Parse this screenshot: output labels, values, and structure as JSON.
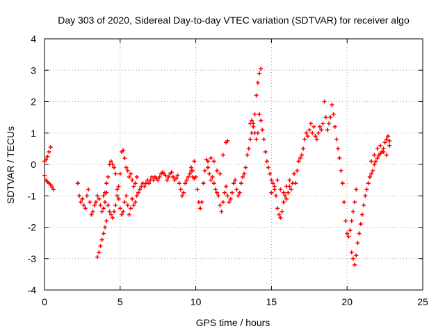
{
  "chart_data": {
    "type": "scatter",
    "title": "Day 303 of 2020, Sidereal Day-to-day VTEC variation (SDTVAR) for receiver algo",
    "xlabel": "GPS time / hours",
    "ylabel": "SDTVAR / TECUs",
    "xlim": [
      0,
      25
    ],
    "ylim": [
      -4,
      4
    ],
    "xticks": [
      0,
      5,
      10,
      15,
      20,
      25
    ],
    "yticks": [
      -4,
      -3,
      -2,
      -1,
      0,
      1,
      2,
      3,
      4
    ],
    "grid": true,
    "marker": "+",
    "color": "#ff0000",
    "series": [
      {
        "name": "SDTVAR",
        "points": [
          [
            0.0,
            0.1
          ],
          [
            0.1,
            0.15
          ],
          [
            0.2,
            0.25
          ],
          [
            0.3,
            0.4
          ],
          [
            0.4,
            0.55
          ],
          [
            0.0,
            -0.35
          ],
          [
            0.1,
            -0.5
          ],
          [
            0.2,
            -0.55
          ],
          [
            0.3,
            -0.6
          ],
          [
            0.4,
            -0.65
          ],
          [
            0.5,
            -0.72
          ],
          [
            0.6,
            -0.8
          ],
          [
            2.2,
            -0.6
          ],
          [
            2.3,
            -1.0
          ],
          [
            2.4,
            -1.2
          ],
          [
            2.5,
            -1.1
          ],
          [
            2.6,
            -1.3
          ],
          [
            2.7,
            -1.4
          ],
          [
            2.8,
            -1.0
          ],
          [
            2.9,
            -0.8
          ],
          [
            3.0,
            -1.2
          ],
          [
            3.1,
            -1.6
          ],
          [
            3.2,
            -1.5
          ],
          [
            3.3,
            -1.3
          ],
          [
            3.4,
            -1.2
          ],
          [
            3.5,
            -1.0
          ],
          [
            3.6,
            -1.1
          ],
          [
            3.7,
            -1.3
          ],
          [
            3.8,
            -1.5
          ],
          [
            3.9,
            -1.4
          ],
          [
            4.0,
            -1.2
          ],
          [
            4.1,
            -0.9
          ],
          [
            4.2,
            -1.3
          ],
          [
            4.3,
            -1.5
          ],
          [
            4.4,
            -1.6
          ],
          [
            4.5,
            -1.7
          ],
          [
            4.6,
            -1.5
          ],
          [
            4.7,
            -1.3
          ],
          [
            4.8,
            -1.0
          ],
          [
            4.9,
            -1.1
          ],
          [
            5.0,
            -1.4
          ],
          [
            5.1,
            -1.6
          ],
          [
            5.2,
            -1.5
          ],
          [
            5.3,
            -1.2
          ],
          [
            5.4,
            -1.0
          ],
          [
            5.5,
            -1.3
          ],
          [
            5.6,
            -1.6
          ],
          [
            5.7,
            -1.4
          ],
          [
            5.8,
            -1.1
          ],
          [
            5.9,
            -1.3
          ],
          [
            6.0,
            -1.2
          ],
          [
            6.1,
            -1.0
          ],
          [
            6.2,
            -0.9
          ],
          [
            6.3,
            -0.8
          ],
          [
            6.4,
            -0.7
          ],
          [
            6.5,
            -0.6
          ],
          [
            6.6,
            -0.7
          ],
          [
            6.7,
            -0.6
          ],
          [
            6.8,
            -0.5
          ],
          [
            6.9,
            -0.6
          ],
          [
            7.0,
            -0.5
          ],
          [
            7.1,
            -0.4
          ],
          [
            7.2,
            -0.5
          ],
          [
            7.3,
            -0.4
          ],
          [
            7.4,
            -0.45
          ],
          [
            7.5,
            -0.5
          ],
          [
            7.6,
            -0.4
          ],
          [
            7.7,
            -0.3
          ],
          [
            7.8,
            -0.25
          ],
          [
            7.9,
            -0.3
          ],
          [
            8.0,
            -0.35
          ],
          [
            8.1,
            -0.5
          ],
          [
            8.2,
            -0.4
          ],
          [
            8.3,
            -0.3
          ],
          [
            8.4,
            -0.25
          ],
          [
            8.5,
            -0.4
          ],
          [
            8.6,
            -0.5
          ],
          [
            8.7,
            -0.45
          ],
          [
            8.8,
            -0.35
          ],
          [
            8.9,
            -0.6
          ],
          [
            9.0,
            -0.8
          ],
          [
            9.1,
            -1.0
          ],
          [
            9.2,
            -0.9
          ],
          [
            9.3,
            -0.6
          ],
          [
            9.4,
            -0.5
          ],
          [
            9.5,
            -0.4
          ],
          [
            9.6,
            -0.3
          ],
          [
            9.7,
            -0.2
          ],
          [
            9.8,
            -0.4
          ],
          [
            9.9,
            -0.45
          ],
          [
            3.5,
            -2.95
          ],
          [
            3.6,
            -2.8
          ],
          [
            3.7,
            -2.6
          ],
          [
            3.8,
            -2.4
          ],
          [
            3.9,
            -2.2
          ],
          [
            4.0,
            -2.0
          ],
          [
            4.1,
            -1.8
          ],
          [
            3.9,
            -1.0
          ],
          [
            4.0,
            -0.9
          ],
          [
            4.1,
            -0.6
          ],
          [
            4.2,
            -0.4
          ],
          [
            4.3,
            0.0
          ],
          [
            4.4,
            0.1
          ],
          [
            4.5,
            0.0
          ],
          [
            4.6,
            -0.1
          ],
          [
            4.7,
            -0.3
          ],
          [
            4.8,
            -0.8
          ],
          [
            4.9,
            -0.7
          ],
          [
            5.0,
            -0.3
          ],
          [
            5.1,
            0.4
          ],
          [
            5.2,
            0.45
          ],
          [
            5.3,
            0.2
          ],
          [
            5.4,
            -0.1
          ],
          [
            5.5,
            -0.2
          ],
          [
            5.6,
            -0.4
          ],
          [
            5.7,
            -0.3
          ],
          [
            5.8,
            -0.5
          ],
          [
            5.9,
            -0.7
          ],
          [
            6.0,
            -0.6
          ],
          [
            6.1,
            -0.4
          ],
          [
            9.7,
            -0.1
          ],
          [
            9.8,
            -0.2
          ],
          [
            9.9,
            0.1
          ],
          [
            10.0,
            -0.4
          ],
          [
            10.1,
            -0.8
          ],
          [
            10.2,
            -1.2
          ],
          [
            10.3,
            -1.4
          ],
          [
            10.4,
            -1.2
          ],
          [
            10.5,
            -0.6
          ],
          [
            10.6,
            -0.2
          ],
          [
            10.7,
            0.15
          ],
          [
            10.8,
            0.1
          ],
          [
            10.9,
            -0.3
          ],
          [
            11.0,
            -0.5
          ],
          [
            11.1,
            -0.4
          ],
          [
            11.2,
            -0.6
          ],
          [
            11.3,
            -0.8
          ],
          [
            11.4,
            -0.9
          ],
          [
            11.5,
            -1.0
          ],
          [
            11.6,
            -1.3
          ],
          [
            11.7,
            -1.5
          ],
          [
            11.8,
            -1.2
          ],
          [
            11.9,
            -0.9
          ],
          [
            12.0,
            -0.7
          ],
          [
            12.1,
            -1.0
          ],
          [
            12.2,
            -1.2
          ],
          [
            12.3,
            -1.1
          ],
          [
            12.4,
            -0.9
          ],
          [
            12.5,
            -0.6
          ],
          [
            12.6,
            -0.5
          ],
          [
            12.7,
            -0.8
          ],
          [
            12.8,
            -1.0
          ],
          [
            12.9,
            -0.9
          ],
          [
            13.0,
            -0.6
          ],
          [
            13.1,
            -0.4
          ],
          [
            13.2,
            -0.3
          ],
          [
            13.3,
            -0.1
          ],
          [
            13.4,
            0.3
          ],
          [
            13.5,
            0.5
          ],
          [
            13.6,
            0.8
          ],
          [
            13.7,
            1.0
          ],
          [
            13.8,
            1.3
          ],
          [
            13.9,
            1.6
          ],
          [
            14.0,
            2.2
          ],
          [
            14.1,
            2.6
          ],
          [
            14.2,
            2.9
          ],
          [
            14.3,
            3.05
          ],
          [
            10.8,
            -0.1
          ],
          [
            11.0,
            0.2
          ],
          [
            11.2,
            0.1
          ],
          [
            11.4,
            -0.2
          ],
          [
            11.6,
            -0.3
          ],
          [
            11.8,
            0.3
          ],
          [
            12.0,
            0.7
          ],
          [
            12.1,
            0.75
          ],
          [
            13.6,
            1.3
          ],
          [
            13.7,
            1.4
          ],
          [
            13.8,
            1.2
          ],
          [
            13.9,
            1.0
          ],
          [
            14.0,
            0.8
          ],
          [
            14.1,
            1.0
          ],
          [
            14.2,
            1.6
          ],
          [
            14.3,
            1.4
          ],
          [
            14.4,
            1.1
          ],
          [
            14.5,
            0.8
          ],
          [
            14.6,
            0.4
          ],
          [
            14.7,
            0.1
          ],
          [
            14.8,
            -0.1
          ],
          [
            14.9,
            -0.3
          ],
          [
            15.0,
            -0.5
          ],
          [
            15.1,
            -0.6
          ],
          [
            15.2,
            -0.8
          ],
          [
            15.3,
            -1.0
          ],
          [
            15.4,
            -1.4
          ],
          [
            15.5,
            -1.6
          ],
          [
            15.6,
            -1.7
          ],
          [
            15.7,
            -1.5
          ],
          [
            15.8,
            -1.2
          ],
          [
            15.9,
            -1.0
          ],
          [
            16.0,
            -1.1
          ],
          [
            16.1,
            -0.9
          ],
          [
            16.2,
            -0.7
          ],
          [
            16.3,
            -0.8
          ],
          [
            16.4,
            -0.6
          ],
          [
            16.5,
            -0.3
          ],
          [
            16.6,
            -0.6
          ],
          [
            16.7,
            -0.2
          ],
          [
            16.8,
            0.1
          ],
          [
            16.9,
            0.2
          ],
          [
            17.0,
            0.3
          ],
          [
            17.1,
            0.5
          ],
          [
            17.2,
            0.8
          ],
          [
            17.3,
            1.0
          ],
          [
            17.4,
            0.9
          ],
          [
            17.5,
            1.1
          ],
          [
            17.6,
            1.3
          ],
          [
            17.7,
            1.0
          ],
          [
            17.8,
            1.2
          ],
          [
            17.9,
            0.9
          ],
          [
            18.0,
            0.8
          ],
          [
            18.1,
            1.0
          ],
          [
            18.2,
            1.2
          ],
          [
            18.3,
            1.1
          ],
          [
            18.4,
            1.3
          ],
          [
            18.5,
            2.0
          ],
          [
            18.6,
            1.5
          ],
          [
            15.0,
            -0.9
          ],
          [
            15.2,
            -0.7
          ],
          [
            15.4,
            -0.5
          ],
          [
            15.6,
            -0.8
          ],
          [
            15.8,
            -0.9
          ],
          [
            16.0,
            -0.7
          ],
          [
            16.2,
            -0.5
          ],
          [
            18.7,
            1.1
          ],
          [
            18.8,
            1.3
          ],
          [
            18.9,
            1.5
          ],
          [
            19.0,
            1.9
          ],
          [
            19.1,
            1.6
          ],
          [
            19.2,
            1.2
          ],
          [
            19.3,
            0.8
          ],
          [
            19.4,
            0.5
          ],
          [
            19.5,
            0.2
          ],
          [
            19.6,
            -0.2
          ],
          [
            19.7,
            -0.6
          ],
          [
            19.8,
            -1.2
          ],
          [
            19.9,
            -1.8
          ],
          [
            20.0,
            -2.2
          ],
          [
            20.1,
            -2.3
          ],
          [
            20.2,
            -2.1
          ],
          [
            20.3,
            -1.8
          ],
          [
            20.4,
            -1.5
          ],
          [
            20.5,
            -1.2
          ],
          [
            20.6,
            -0.8
          ],
          [
            20.3,
            -2.8
          ],
          [
            20.4,
            -3.0
          ],
          [
            20.5,
            -3.2
          ],
          [
            20.6,
            -2.9
          ],
          [
            20.7,
            -2.5
          ],
          [
            20.8,
            -2.2
          ],
          [
            20.9,
            -1.9
          ],
          [
            21.0,
            -1.6
          ],
          [
            21.1,
            -1.3
          ],
          [
            21.2,
            -1.0
          ],
          [
            21.3,
            -0.8
          ],
          [
            21.4,
            -0.6
          ],
          [
            21.5,
            -0.4
          ],
          [
            21.6,
            -0.3
          ],
          [
            21.7,
            -0.2
          ],
          [
            21.8,
            0.0
          ],
          [
            21.9,
            0.1
          ],
          [
            22.0,
            0.2
          ],
          [
            22.1,
            0.3
          ],
          [
            22.2,
            0.35
          ],
          [
            22.3,
            0.4
          ],
          [
            22.4,
            0.5
          ],
          [
            22.5,
            0.7
          ],
          [
            22.6,
            0.8
          ],
          [
            22.7,
            0.9
          ],
          [
            22.8,
            0.75
          ],
          [
            21.6,
            0.1
          ],
          [
            21.8,
            0.3
          ],
          [
            22.0,
            0.5
          ],
          [
            22.2,
            0.6
          ],
          [
            22.4,
            0.4
          ],
          [
            22.6,
            0.3
          ],
          [
            22.8,
            0.6
          ]
        ]
      }
    ]
  }
}
